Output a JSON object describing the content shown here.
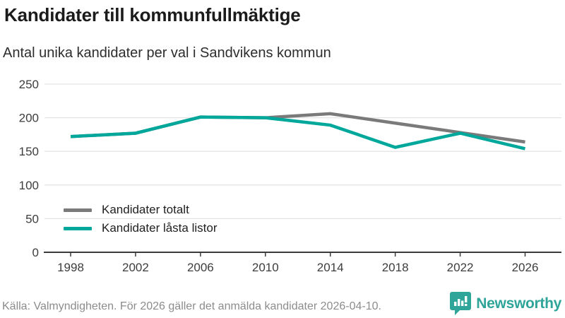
{
  "header": {
    "title": "Kandidater till kommunfullmäktige",
    "subtitle": "Antal unika kandidater per val i Sandvikens kommun"
  },
  "chart_data": {
    "type": "line",
    "x": [
      1998,
      2002,
      2006,
      2010,
      2014,
      2018,
      2022,
      2026
    ],
    "series": [
      {
        "name": "Kandidater totalt",
        "color": "#7a7a7a",
        "values": [
          172,
          177,
          201,
          200,
          206,
          192,
          178,
          164
        ]
      },
      {
        "name": "Kandidater låsta listor",
        "color": "#00a79b",
        "values": [
          172,
          177,
          201,
          200,
          189,
          156,
          177,
          154
        ]
      }
    ],
    "ylim": [
      0,
      250
    ],
    "yticks": [
      0,
      50,
      100,
      150,
      200,
      250
    ],
    "grid": true,
    "legend_position": "inside-bottom-left",
    "axis_color": "#3b3b3b",
    "grid_color": "#e4e4e4",
    "tick_label_color": "#3d3d3d"
  },
  "footer": {
    "source": "Källa: Valmyndigheten. För 2026 gäller det anmälda kandidater 2026-04-10."
  },
  "branding": {
    "logo_text": "Newsworthy",
    "logo_icon": "bar-chart-speech-bubble-icon",
    "logo_color": "#2fa499"
  }
}
